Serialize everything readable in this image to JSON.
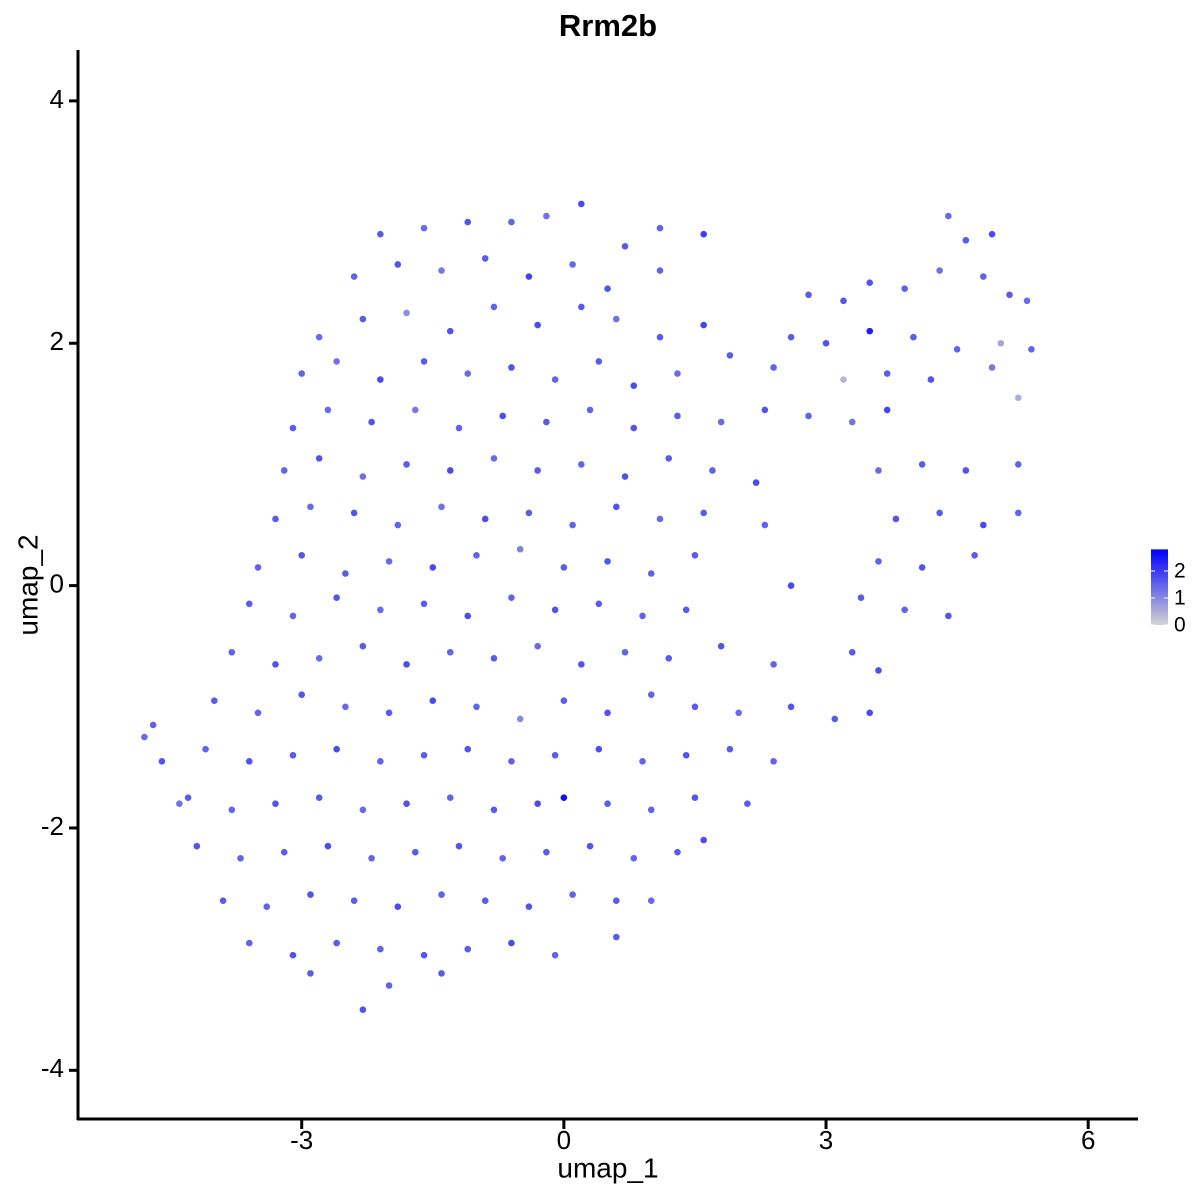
{
  "chart_data": {
    "type": "scatter",
    "title": "Rrm2b",
    "x_label": "umap_1",
    "y_label": "umap_2",
    "xlim": [
      -5.56,
      6.57
    ],
    "xticks": [
      -3,
      0,
      3,
      6
    ],
    "ylim": [
      -4.41,
      4.42
    ],
    "yticks": [
      -4,
      -2,
      0,
      2,
      4
    ],
    "color_low": "#d3d3d3",
    "color_high": "#0000ff",
    "colorbar_lim": [
      0,
      2.8
    ],
    "colorbar_ticks": [
      0,
      1,
      2
    ],
    "x": [
      -2.1,
      -1.6,
      -1.1,
      -0.6,
      -0.2,
      0.2,
      0.7,
      1.1,
      1.6,
      -2.4,
      -1.9,
      -1.4,
      -0.9,
      -0.4,
      0.1,
      0.5,
      1.1,
      -2.8,
      -2.3,
      -1.8,
      -1.3,
      -0.8,
      -0.3,
      0.2,
      0.6,
      1.1,
      1.6,
      -3.0,
      -2.6,
      -2.1,
      -1.6,
      -1.1,
      -0.6,
      -0.1,
      0.4,
      0.8,
      1.3,
      1.9,
      2.4,
      -3.1,
      -2.7,
      -2.2,
      -1.7,
      -1.2,
      -0.7,
      -0.2,
      0.3,
      0.8,
      1.3,
      1.8,
      2.3,
      2.8,
      3.3,
      3.7,
      -3.2,
      -2.8,
      -2.3,
      -1.8,
      -1.3,
      -0.8,
      -0.3,
      0.2,
      0.7,
      1.2,
      1.7,
      2.2,
      3.6,
      4.1,
      4.6,
      5.2,
      -3.3,
      -2.9,
      -2.4,
      -1.9,
      -1.4,
      -0.9,
      -0.4,
      0.1,
      0.6,
      1.1,
      1.6,
      2.3,
      3.8,
      4.3,
      4.8,
      5.2,
      -3.5,
      -3.0,
      -2.5,
      -2.0,
      -1.5,
      -1.0,
      -0.5,
      0.0,
      0.5,
      1.0,
      1.5,
      3.6,
      4.1,
      4.7,
      -3.6,
      -3.1,
      -2.6,
      -2.1,
      -1.6,
      -1.1,
      -0.6,
      -0.1,
      0.4,
      0.9,
      1.4,
      2.6,
      3.4,
      3.9,
      4.4,
      -3.8,
      -3.3,
      -2.8,
      -2.3,
      -1.8,
      -1.3,
      -0.8,
      -0.3,
      0.2,
      0.7,
      1.2,
      1.8,
      2.4,
      3.3,
      3.6,
      -4.0,
      -3.5,
      -3.0,
      -2.5,
      -2.0,
      -1.5,
      -1.0,
      -0.5,
      0.0,
      0.5,
      1.0,
      1.5,
      2.0,
      2.6,
      3.1,
      3.5,
      -4.1,
      -3.6,
      -3.1,
      -2.6,
      -2.1,
      -1.6,
      -1.1,
      -0.6,
      -0.1,
      0.4,
      0.9,
      1.4,
      1.9,
      2.4,
      -4.3,
      -3.8,
      -3.3,
      -2.8,
      -2.3,
      -1.8,
      -1.3,
      -0.8,
      -0.3,
      0.0,
      0.5,
      1.0,
      1.5,
      2.1,
      -4.2,
      -3.7,
      -3.2,
      -2.7,
      -2.2,
      -1.7,
      -1.2,
      -0.7,
      -0.2,
      0.3,
      0.8,
      1.3,
      1.6,
      -3.9,
      -3.4,
      -2.9,
      -2.4,
      -1.9,
      -1.4,
      -0.9,
      -0.4,
      0.1,
      0.6,
      1.0,
      -3.6,
      -3.1,
      -2.6,
      -2.1,
      -1.6,
      -1.1,
      -0.6,
      -0.1,
      0.6,
      -2.9,
      -2.3,
      -2.0,
      -1.4,
      -4.8,
      -4.7,
      -4.6,
      -4.4,
      4.4,
      4.6,
      4.9,
      4.3,
      4.8,
      5.1,
      5.3,
      3.5,
      3.9,
      2.8,
      3.2,
      2.6,
      3.0,
      3.5,
      4.0,
      4.5,
      5.0,
      5.35,
      3.2,
      4.9,
      5.2,
      4.2,
      3.7
    ],
    "values": [
      2.9,
      2.95,
      3.0,
      3.0,
      3.05,
      3.15,
      2.8,
      2.95,
      2.9,
      2.55,
      2.65,
      2.6,
      2.7,
      2.55,
      2.65,
      2.45,
      2.6,
      2.05,
      2.2,
      2.25,
      2.1,
      2.3,
      2.15,
      2.3,
      2.2,
      2.05,
      2.15,
      1.75,
      1.85,
      1.7,
      1.85,
      1.75,
      1.8,
      1.7,
      1.85,
      1.65,
      1.75,
      1.9,
      1.8,
      1.3,
      1.45,
      1.35,
      1.45,
      1.3,
      1.4,
      1.35,
      1.45,
      1.3,
      1.4,
      1.35,
      1.45,
      1.4,
      1.35,
      1.45,
      0.95,
      1.05,
      0.9,
      1.0,
      0.95,
      1.05,
      0.95,
      1.0,
      0.9,
      1.05,
      0.95,
      0.85,
      0.95,
      1.0,
      0.95,
      1.0,
      0.55,
      0.65,
      0.6,
      0.5,
      0.65,
      0.55,
      0.6,
      0.5,
      0.65,
      0.55,
      0.6,
      0.5,
      0.55,
      0.6,
      0.5,
      0.6,
      0.15,
      0.25,
      0.1,
      0.2,
      0.15,
      0.25,
      0.3,
      0.15,
      0.2,
      0.1,
      0.25,
      0.2,
      0.15,
      0.25,
      -0.15,
      -0.25,
      -0.1,
      -0.2,
      -0.15,
      -0.25,
      -0.1,
      -0.2,
      -0.15,
      -0.25,
      -0.2,
      0.0,
      -0.1,
      -0.2,
      -0.25,
      -0.55,
      -0.65,
      -0.6,
      -0.5,
      -0.65,
      -0.55,
      -0.6,
      -0.5,
      -0.65,
      -0.55,
      -0.6,
      -0.5,
      -0.65,
      -0.55,
      -0.7,
      -0.95,
      -1.05,
      -0.9,
      -1.0,
      -1.05,
      -0.95,
      -1.0,
      -1.1,
      -0.95,
      -1.05,
      -0.9,
      -1.0,
      -1.05,
      -1.0,
      -1.1,
      -1.05,
      -1.35,
      -1.45,
      -1.4,
      -1.35,
      -1.45,
      -1.4,
      -1.35,
      -1.45,
      -1.4,
      -1.35,
      -1.45,
      -1.4,
      -1.35,
      -1.45,
      -1.75,
      -1.85,
      -1.8,
      -1.75,
      -1.85,
      -1.8,
      -1.75,
      -1.85,
      -1.8,
      -1.75,
      -1.8,
      -1.85,
      -1.75,
      -1.8,
      -2.15,
      -2.25,
      -2.2,
      -2.15,
      -2.25,
      -2.2,
      -2.15,
      -2.25,
      -2.2,
      -2.15,
      -2.25,
      -2.2,
      -2.1,
      -2.6,
      -2.65,
      -2.55,
      -2.6,
      -2.65,
      -2.55,
      -2.6,
      -2.65,
      -2.55,
      -2.6,
      -2.6,
      -2.95,
      -3.05,
      -2.95,
      -3.0,
      -3.05,
      -3.0,
      -2.95,
      -3.05,
      -2.9,
      -3.2,
      -3.5,
      -3.3,
      -3.2,
      -1.25,
      -1.15,
      -1.45,
      -1.8,
      3.05,
      2.85,
      2.9,
      2.6,
      2.55,
      2.4,
      2.35,
      2.5,
      2.45,
      2.4,
      2.35,
      2.05,
      2.0,
      2.1,
      2.05,
      1.95,
      2.0,
      1.95,
      1.7,
      1.8,
      1.55,
      1.7,
      1.75
    ],
    "expression": [
      1.6,
      1.4,
      1.7,
      1.5,
      1.3,
      1.8,
      1.6,
      1.5,
      2.0,
      1.5,
      1.7,
      1.2,
      1.6,
      1.9,
      1.4,
      1.7,
      1.5,
      1.4,
      1.6,
      0.9,
      1.7,
      1.5,
      1.8,
      1.6,
      1.3,
      1.6,
      1.9,
      1.5,
      1.3,
      1.8,
      1.6,
      1.4,
      1.7,
      1.5,
      1.6,
      1.8,
      1.4,
      1.6,
      1.5,
      1.6,
      1.4,
      1.7,
      1.2,
      1.5,
      1.8,
      1.6,
      1.5,
      1.7,
      1.6,
      1.4,
      1.7,
      1.5,
      1.3,
      1.9,
      1.5,
      1.7,
      1.3,
      1.6,
      1.8,
      1.4,
      1.6,
      1.5,
      1.7,
      1.6,
      1.5,
      1.8,
      1.4,
      1.6,
      1.7,
      1.5,
      1.6,
      1.4,
      1.7,
      1.5,
      1.3,
      1.8,
      1.6,
      1.5,
      1.7,
      1.4,
      1.6,
      1.5,
      1.7,
      1.6,
      1.8,
      1.5,
      1.5,
      1.7,
      1.6,
      1.4,
      1.8,
      1.5,
      1.1,
      1.6,
      1.7,
      1.5,
      1.6,
      1.5,
      1.7,
      1.6,
      1.6,
      1.5,
      1.7,
      1.4,
      1.6,
      1.8,
      1.5,
      1.7,
      1.6,
      1.5,
      1.6,
      1.8,
      1.6,
      1.5,
      1.7,
      1.5,
      1.7,
      1.4,
      1.6,
      1.8,
      1.5,
      1.6,
      1.4,
      1.7,
      1.5,
      1.6,
      1.7,
      1.5,
      1.6,
      1.8,
      1.6,
      1.5,
      1.7,
      1.4,
      1.6,
      1.8,
      1.5,
      1.0,
      1.6,
      1.7,
      1.5,
      1.6,
      1.4,
      1.7,
      1.6,
      1.8,
      1.5,
      1.7,
      1.6,
      1.8,
      1.5,
      1.6,
      1.7,
      1.5,
      1.6,
      1.8,
      1.5,
      1.7,
      1.6,
      1.5,
      1.6,
      1.5,
      1.7,
      1.6,
      1.4,
      1.7,
      1.5,
      1.6,
      1.8,
      2.6,
      1.6,
      1.5,
      1.7,
      1.6,
      1.7,
      1.5,
      1.6,
      1.8,
      1.5,
      1.6,
      1.7,
      1.5,
      1.6,
      1.7,
      1.5,
      1.6,
      1.8,
      1.6,
      1.5,
      1.7,
      1.6,
      1.8,
      1.5,
      1.6,
      1.7,
      1.5,
      1.6,
      1.4,
      1.5,
      1.7,
      1.6,
      1.5,
      1.7,
      1.6,
      1.8,
      1.5,
      1.6,
      1.6,
      1.7,
      1.5,
      1.6,
      1.4,
      1.5,
      1.7,
      1.3,
      1.4,
      1.6,
      1.8,
      1.3,
      1.5,
      1.6,
      1.4,
      1.7,
      1.5,
      1.6,
      1.7,
      1.6,
      1.7,
      2.4,
      1.6,
      1.5,
      0.6,
      1.5,
      0.4,
      1.2,
      0.5,
      1.7,
      1.6
    ]
  }
}
